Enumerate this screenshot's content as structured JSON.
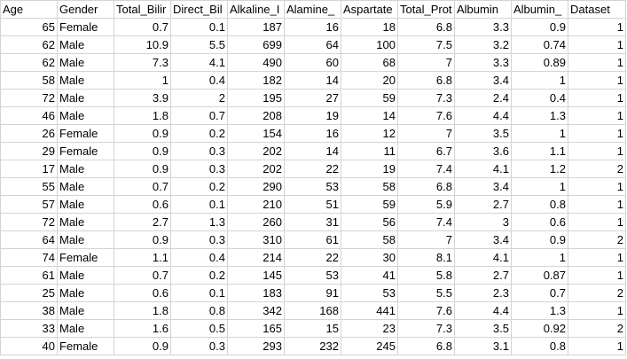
{
  "sheet": {
    "headers": [
      "Age",
      "Gender",
      "Total_Bilirubin",
      "Direct_Bilirubin",
      "Alkaline_Phosphotase",
      "Alamine_Aminotransferase",
      "Aspartate_Aminotransferase",
      "Total_Protiens",
      "Albumin",
      "Albumin_and_Globulin_Ratio",
      "Dataset"
    ],
    "header_display": [
      "Age",
      "Gender",
      "Total_Bilir",
      "Direct_Bil",
      "Alkaline_I",
      "Alamine_",
      "Aspartate",
      "Total_Prot",
      "Albumin",
      "Albumin_",
      "Dataset"
    ],
    "rows": [
      [
        "65",
        "Female",
        "0.7",
        "0.1",
        "187",
        "16",
        "18",
        "6.8",
        "3.3",
        "0.9",
        "1"
      ],
      [
        "62",
        "Male",
        "10.9",
        "5.5",
        "699",
        "64",
        "100",
        "7.5",
        "3.2",
        "0.74",
        "1"
      ],
      [
        "62",
        "Male",
        "7.3",
        "4.1",
        "490",
        "60",
        "68",
        "7",
        "3.3",
        "0.89",
        "1"
      ],
      [
        "58",
        "Male",
        "1",
        "0.4",
        "182",
        "14",
        "20",
        "6.8",
        "3.4",
        "1",
        "1"
      ],
      [
        "72",
        "Male",
        "3.9",
        "2",
        "195",
        "27",
        "59",
        "7.3",
        "2.4",
        "0.4",
        "1"
      ],
      [
        "46",
        "Male",
        "1.8",
        "0.7",
        "208",
        "19",
        "14",
        "7.6",
        "4.4",
        "1.3",
        "1"
      ],
      [
        "26",
        "Female",
        "0.9",
        "0.2",
        "154",
        "16",
        "12",
        "7",
        "3.5",
        "1",
        "1"
      ],
      [
        "29",
        "Female",
        "0.9",
        "0.3",
        "202",
        "14",
        "11",
        "6.7",
        "3.6",
        "1.1",
        "1"
      ],
      [
        "17",
        "Male",
        "0.9",
        "0.3",
        "202",
        "22",
        "19",
        "7.4",
        "4.1",
        "1.2",
        "2"
      ],
      [
        "55",
        "Male",
        "0.7",
        "0.2",
        "290",
        "53",
        "58",
        "6.8",
        "3.4",
        "1",
        "1"
      ],
      [
        "57",
        "Male",
        "0.6",
        "0.1",
        "210",
        "51",
        "59",
        "5.9",
        "2.7",
        "0.8",
        "1"
      ],
      [
        "72",
        "Male",
        "2.7",
        "1.3",
        "260",
        "31",
        "56",
        "7.4",
        "3",
        "0.6",
        "1"
      ],
      [
        "64",
        "Male",
        "0.9",
        "0.3",
        "310",
        "61",
        "58",
        "7",
        "3.4",
        "0.9",
        "2"
      ],
      [
        "74",
        "Female",
        "1.1",
        "0.4",
        "214",
        "22",
        "30",
        "8.1",
        "4.1",
        "1",
        "1"
      ],
      [
        "61",
        "Male",
        "0.7",
        "0.2",
        "145",
        "53",
        "41",
        "5.8",
        "2.7",
        "0.87",
        "1"
      ],
      [
        "25",
        "Male",
        "0.6",
        "0.1",
        "183",
        "91",
        "53",
        "5.5",
        "2.3",
        "0.7",
        "2"
      ],
      [
        "38",
        "Male",
        "1.8",
        "0.8",
        "342",
        "168",
        "441",
        "7.6",
        "4.4",
        "1.3",
        "1"
      ],
      [
        "33",
        "Male",
        "1.6",
        "0.5",
        "165",
        "15",
        "23",
        "7.3",
        "3.5",
        "0.92",
        "2"
      ],
      [
        "40",
        "Female",
        "0.9",
        "0.3",
        "293",
        "232",
        "245",
        "6.8",
        "3.1",
        "0.8",
        "1"
      ]
    ]
  }
}
